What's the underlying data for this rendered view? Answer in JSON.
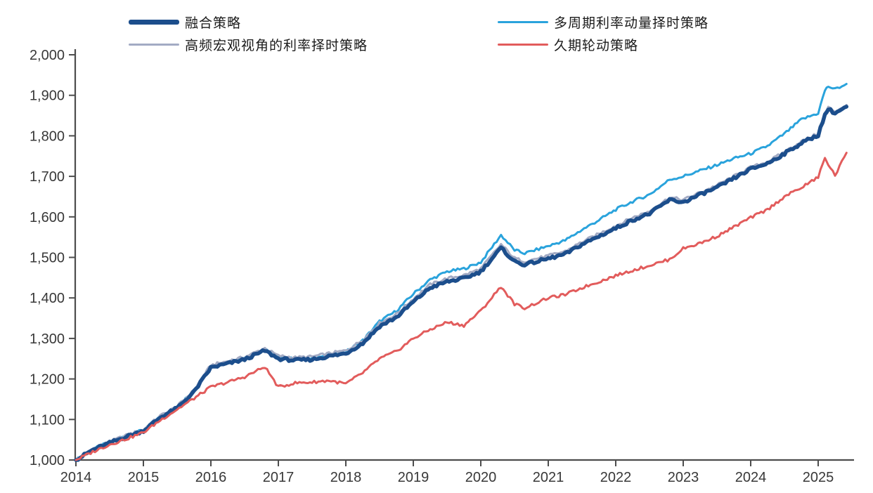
{
  "legend": {
    "items": [
      {
        "label": "融合策略",
        "color": "#1c4e8c",
        "thickness": 7
      },
      {
        "label": "多周期利率动量择时策略",
        "color": "#2aa3dc",
        "thickness": 3
      },
      {
        "label": "高频宏观视角的利率择时策略",
        "color": "#a3abc4",
        "thickness": 3
      },
      {
        "label": "久期轮动策略",
        "color": "#e25c5c",
        "thickness": 3
      }
    ]
  },
  "chart_data": {
    "type": "line",
    "title": "",
    "xlabel": "",
    "ylabel": "",
    "grid": false,
    "legend_position": "top",
    "xlim": [
      2014,
      2025.5
    ],
    "ylim": [
      1000,
      2000
    ],
    "x_tick_labels": [
      "2014",
      "2015",
      "2016",
      "2017",
      "2018",
      "2019",
      "2020",
      "2021",
      "2022",
      "2023",
      "2024",
      "2025"
    ],
    "x_tick_values": [
      2014,
      2015,
      2016,
      2017,
      2018,
      2019,
      2020,
      2021,
      2022,
      2023,
      2024,
      2025
    ],
    "y_tick_labels": [
      "1,000",
      "1,100",
      "1,200",
      "1,300",
      "1,400",
      "1,500",
      "1,600",
      "1,700",
      "1,800",
      "1,900",
      "2,000"
    ],
    "y_tick_values": [
      1000,
      1100,
      1200,
      1300,
      1400,
      1500,
      1600,
      1700,
      1800,
      1900,
      2000
    ],
    "x": [
      2014.0,
      2014.25,
      2014.5,
      2014.75,
      2015.0,
      2015.25,
      2015.5,
      2015.75,
      2016.0,
      2016.25,
      2016.5,
      2016.8,
      2017.0,
      2017.25,
      2017.5,
      2017.75,
      2018.0,
      2018.25,
      2018.5,
      2018.75,
      2019.0,
      2019.25,
      2019.5,
      2019.75,
      2020.0,
      2020.3,
      2020.5,
      2020.65,
      2021.0,
      2021.25,
      2021.5,
      2021.75,
      2022.0,
      2022.25,
      2022.5,
      2022.8,
      2023.0,
      2023.25,
      2023.5,
      2023.75,
      2024.0,
      2024.25,
      2024.5,
      2024.75,
      2025.0,
      2025.1,
      2025.15,
      2025.25,
      2025.42
    ],
    "series": [
      {
        "id": "duoqhouqi",
        "name": "多周期利率动量择时策略",
        "color": "#2aa3dc",
        "width": 3,
        "values": [
          1000,
          1026,
          1044,
          1060,
          1074,
          1107,
          1131,
          1171,
          1231,
          1241,
          1251,
          1273,
          1253,
          1249,
          1251,
          1259,
          1267,
          1295,
          1342,
          1368,
          1410,
          1445,
          1465,
          1472,
          1488,
          1555,
          1518,
          1510,
          1528,
          1542,
          1568,
          1592,
          1618,
          1638,
          1655,
          1692,
          1700,
          1714,
          1728,
          1744,
          1756,
          1775,
          1805,
          1840,
          1856,
          1912,
          1922,
          1915,
          1928
        ]
      },
      {
        "id": "gaopin",
        "name": "高频宏观视角的利率择时策略",
        "color": "#a3abc4",
        "width": 3,
        "values": [
          1000,
          1027,
          1045,
          1061,
          1075,
          1109,
          1132,
          1172,
          1234,
          1244,
          1254,
          1276,
          1257,
          1253,
          1255,
          1263,
          1270,
          1296,
          1338,
          1360,
          1398,
          1433,
          1448,
          1456,
          1472,
          1532,
          1498,
          1490,
          1504,
          1515,
          1538,
          1558,
          1578,
          1598,
          1614,
          1648,
          1642,
          1660,
          1678,
          1700,
          1722,
          1736,
          1760,
          1786,
          1806,
          1856,
          1870,
          1860,
          1876
        ]
      },
      {
        "id": "ronghe",
        "name": "融合策略",
        "color": "#1c4e8c",
        "width": 5.5,
        "values": [
          1000,
          1025,
          1042,
          1058,
          1072,
          1105,
          1128,
          1168,
          1228,
          1238,
          1248,
          1270,
          1250,
          1246,
          1248,
          1256,
          1263,
          1288,
          1330,
          1352,
          1390,
          1425,
          1440,
          1448,
          1465,
          1523,
          1490,
          1482,
          1497,
          1508,
          1532,
          1552,
          1572,
          1592,
          1608,
          1642,
          1636,
          1655,
          1672,
          1695,
          1718,
          1732,
          1756,
          1782,
          1802,
          1852,
          1866,
          1856,
          1872
        ]
      },
      {
        "id": "jiuqi",
        "name": "久期轮动策略",
        "color": "#e25c5c",
        "width": 3,
        "values": [
          1000,
          1020,
          1038,
          1052,
          1068,
          1098,
          1125,
          1152,
          1180,
          1192,
          1205,
          1230,
          1180,
          1190,
          1192,
          1196,
          1188,
          1215,
          1250,
          1268,
          1300,
          1322,
          1340,
          1332,
          1368,
          1428,
          1385,
          1375,
          1400,
          1408,
          1425,
          1440,
          1455,
          1468,
          1480,
          1495,
          1522,
          1535,
          1552,
          1575,
          1598,
          1618,
          1650,
          1672,
          1698,
          1745,
          1730,
          1702,
          1758
        ]
      }
    ]
  }
}
